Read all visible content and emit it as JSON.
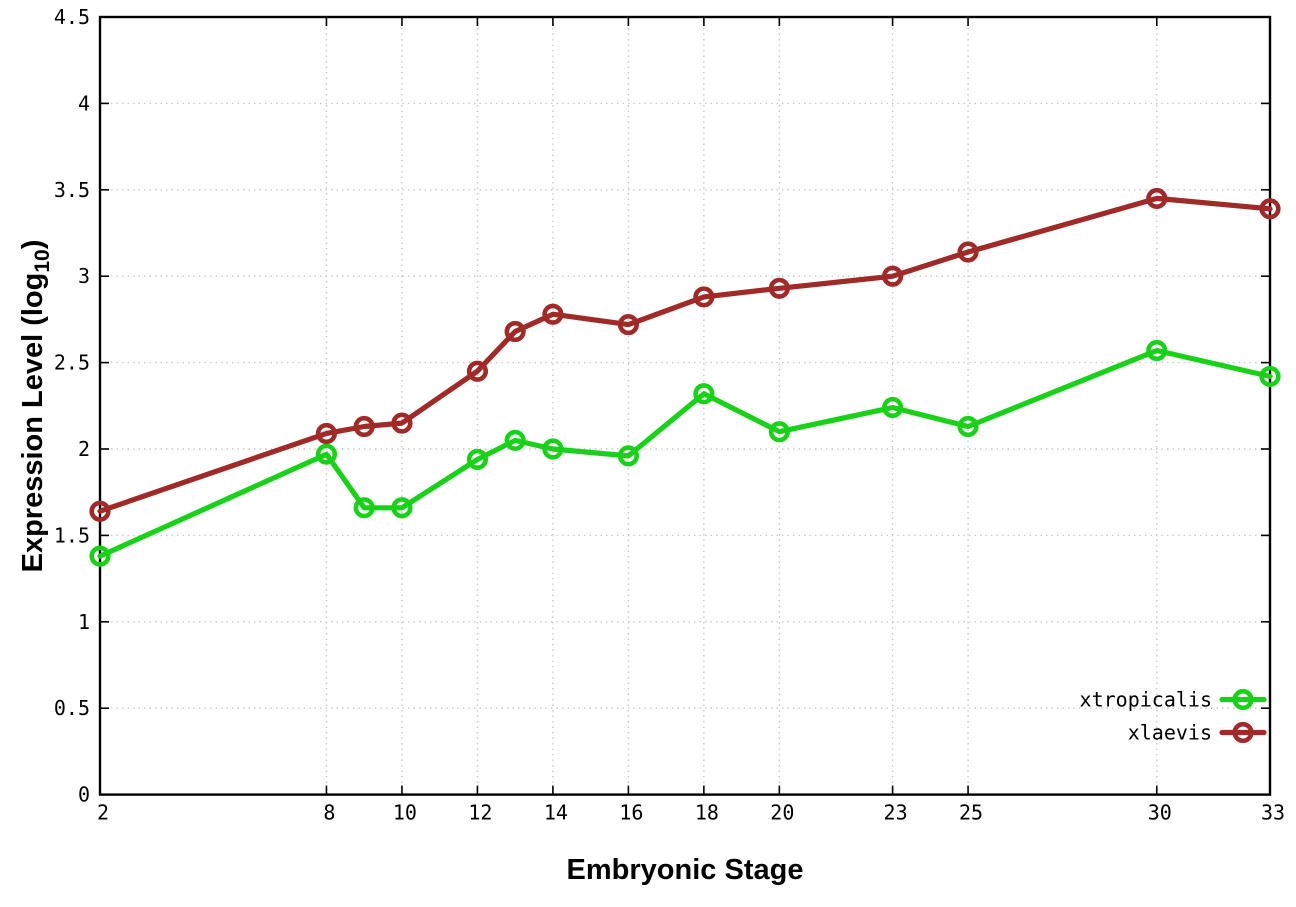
{
  "figure": {
    "background": "#ffffff",
    "frame_color": "#000000",
    "grid_color": "#c9c9c9",
    "text_color": "#000000"
  },
  "chart_data": {
    "type": "line",
    "title": "",
    "xlabel": "Embryonic Stage",
    "ylabel": "Expression Level (log10)",
    "ylabel_parts": {
      "prefix": "Expression Level (log",
      "subscript": "10",
      "suffix": ")"
    },
    "x": [
      2,
      8,
      9,
      10,
      12,
      13,
      14,
      16,
      18,
      20,
      23,
      25,
      30,
      33
    ],
    "series": [
      {
        "name": "xtropicalis",
        "color": "#1ad11a",
        "values": [
          1.38,
          1.97,
          1.66,
          1.66,
          1.94,
          2.05,
          2.0,
          1.96,
          2.32,
          2.1,
          2.24,
          2.13,
          2.57,
          2.42
        ]
      },
      {
        "name": "xlaevis",
        "color": "#a02a28",
        "values": [
          1.64,
          2.09,
          2.13,
          2.15,
          2.45,
          2.68,
          2.78,
          2.72,
          2.88,
          2.93,
          3.0,
          3.14,
          3.45,
          3.39
        ]
      }
    ],
    "xlim": [
      2,
      33
    ],
    "ylim": [
      0,
      4.5
    ],
    "xticks": [
      2,
      8,
      10,
      12,
      14,
      16,
      18,
      20,
      23,
      25,
      30,
      33
    ],
    "xtick_labels": [
      "2",
      "8",
      "10",
      "12",
      "14",
      "16",
      "18",
      "20",
      "23",
      "25",
      "30",
      "33"
    ],
    "yticks": [
      0,
      0.5,
      1,
      1.5,
      2,
      2.5,
      3,
      3.5,
      4,
      4.5
    ],
    "ytick_labels": [
      "0",
      "0.5",
      "1",
      "1.5",
      "2",
      "2.5",
      "3",
      "3.5",
      "4",
      "4.5"
    ],
    "grid": true,
    "marker": "open-circle",
    "legend_position": "inside bottom right",
    "legend_entries": [
      "xtropicalis",
      "xlaevis"
    ]
  }
}
